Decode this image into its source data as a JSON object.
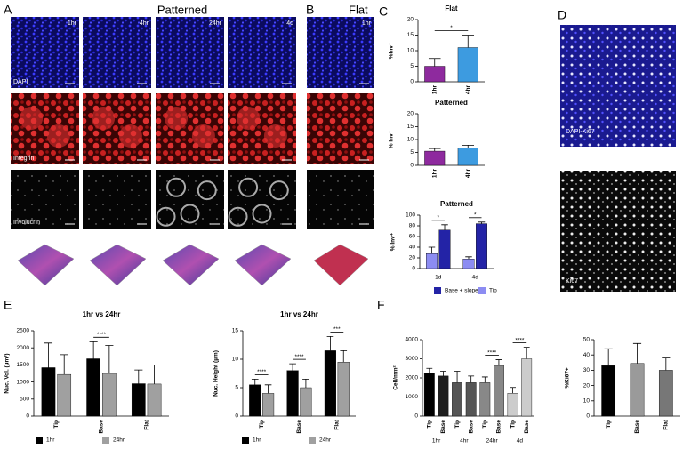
{
  "panel_labels": [
    "A",
    "B",
    "C",
    "D",
    "E",
    "F"
  ],
  "headers": {
    "patterned": "Patterned",
    "flat": "Flat"
  },
  "images": {
    "time_labels": [
      "1hr",
      "4hr",
      "24hr",
      "4d"
    ],
    "flat_time": "1hr",
    "stain_labels": [
      "DAPI",
      "Integrin",
      "Involucrin"
    ]
  },
  "ki67_images": {
    "labels": [
      "DAPI-Ki67",
      "Ki67"
    ]
  },
  "chart_data": [
    {
      "type": "bar",
      "title": "Flat",
      "ylabel": "%Inv⁺",
      "categories": [
        "1hr",
        "4hr"
      ],
      "values": [
        5,
        11
      ],
      "errors": [
        2.5,
        4
      ],
      "colors": [
        "#8e2a9e",
        "#3d9be0"
      ],
      "ylim": [
        0,
        20
      ],
      "yticks": [
        0,
        5,
        10,
        15,
        20
      ],
      "annotations": [
        "*"
      ]
    },
    {
      "type": "bar",
      "title": "Patterned",
      "ylabel": "% Inv⁺",
      "categories": [
        "1hr",
        "4hr"
      ],
      "values": [
        5.5,
        6.8
      ],
      "errors": [
        1,
        1
      ],
      "colors": [
        "#8e2a9e",
        "#3d9be0"
      ],
      "ylim": [
        0,
        20
      ],
      "yticks": [
        0,
        5,
        10,
        15,
        20
      ],
      "annotations": []
    },
    {
      "type": "bar",
      "title": "Patterned",
      "ylabel": "% Inv⁺",
      "categories": [
        "1d",
        "4d"
      ],
      "series": [
        {
          "name": "Base + slope",
          "color": "#2323a6",
          "values": [
            72,
            84
          ],
          "errors": [
            10,
            3
          ]
        },
        {
          "name": "Tip",
          "color": "#8c8cf2",
          "values": [
            28,
            18
          ],
          "errors": [
            12,
            4
          ]
        }
      ],
      "ylim": [
        0,
        100
      ],
      "yticks": [
        0,
        20,
        40,
        60,
        80,
        100
      ],
      "annotations": [
        "*",
        "*"
      ]
    },
    {
      "type": "bar",
      "title": "1hr vs 24hr",
      "ylabel": "Nuc. Vol. (µm³)",
      "categories": [
        "Tip",
        "Base",
        "Flat"
      ],
      "series": [
        {
          "name": "1hr",
          "color": "#000000",
          "values": [
            1420,
            1680,
            950
          ],
          "errors": [
            720,
            500,
            400
          ]
        },
        {
          "name": "24hr",
          "color": "#a0a0a0",
          "values": [
            1220,
            1250,
            940
          ],
          "errors": [
            580,
            820,
            560
          ]
        }
      ],
      "ylim": [
        0,
        2500
      ],
      "yticks": [
        0,
        500,
        1000,
        1500,
        2000,
        2500
      ],
      "annotations": [
        "****"
      ]
    },
    {
      "type": "bar",
      "title": "1hr vs 24hr",
      "ylabel": "Nuc. Height (µm)",
      "categories": [
        "Tip",
        "Base",
        "Flat"
      ],
      "series": [
        {
          "name": "1hr",
          "color": "#000000",
          "values": [
            5.5,
            8,
            11.5
          ],
          "errors": [
            1,
            1.2,
            2.5
          ]
        },
        {
          "name": "24hr",
          "color": "#a0a0a0",
          "values": [
            4,
            5,
            9.5
          ],
          "errors": [
            1.5,
            1.5,
            2
          ]
        }
      ],
      "ylim": [
        0,
        15
      ],
      "yticks": [
        0,
        5,
        10,
        15
      ],
      "annotations": [
        "****",
        "****",
        "***"
      ]
    },
    {
      "type": "bar",
      "ylabel": "Cell/mm²",
      "categories": [
        "Tip",
        "Base",
        "Tip",
        "Base",
        "Tip",
        "Base",
        "Tip",
        "Base"
      ],
      "groups": [
        "1hr",
        "4hr",
        "24hr",
        "4d"
      ],
      "values": [
        2250,
        2100,
        1750,
        1750,
        1750,
        2650,
        1200,
        3000
      ],
      "errors": [
        250,
        250,
        600,
        350,
        300,
        300,
        300,
        600
      ],
      "colors": [
        "#000000",
        "#1e1e1e",
        "#555555",
        "#555555",
        "#888888",
        "#888888",
        "#cccccc",
        "#cccccc"
      ],
      "ylim": [
        0,
        4000
      ],
      "yticks": [
        0,
        1000,
        2000,
        3000,
        4000
      ],
      "annotations": [
        "****",
        "****"
      ]
    },
    {
      "type": "bar",
      "ylabel": "%Ki67+",
      "categories": [
        "Tip",
        "Base",
        "Flat"
      ],
      "values": [
        33,
        34.5,
        30
      ],
      "errors": [
        11,
        13,
        8
      ],
      "colors": [
        "#000000",
        "#9a9a9a",
        "#777777"
      ],
      "ylim": [
        0,
        50
      ],
      "yticks": [
        0,
        10,
        20,
        30,
        40,
        50
      ],
      "annotations": []
    }
  ]
}
